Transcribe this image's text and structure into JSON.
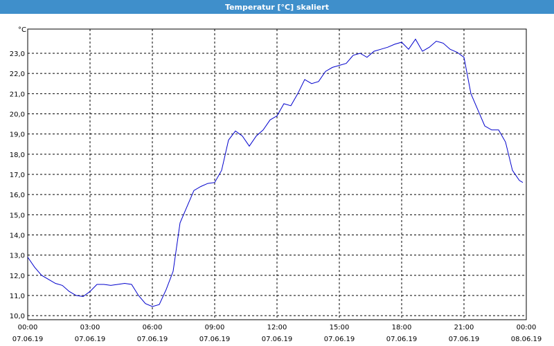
{
  "title": "Temperatur [°C] skaliert",
  "colors": {
    "titlebar": "#3f8fcb",
    "line": "#0000cc",
    "grid": "#000000"
  },
  "chart_data": {
    "type": "line",
    "title": "Temperatur [°C] skaliert",
    "ylabel": "°C",
    "xlabel": "",
    "xlim": [
      "2019-06-07 00:00",
      "2019-06-08 00:00"
    ],
    "ylim": [
      9.8,
      24.2
    ],
    "grid": true,
    "legend": "none",
    "x_ticks": [
      {
        "time": "00:00",
        "date": "07.06.19"
      },
      {
        "time": "03:00",
        "date": "07.06.19"
      },
      {
        "time": "06:00",
        "date": "07.06.19"
      },
      {
        "time": "09:00",
        "date": "07.06.19"
      },
      {
        "time": "12:00",
        "date": "07.06.19"
      },
      {
        "time": "15:00",
        "date": "07.06.19"
      },
      {
        "time": "18:00",
        "date": "07.06.19"
      },
      {
        "time": "21:00",
        "date": "07.06.19"
      },
      {
        "time": "00:00",
        "date": "08.06.19"
      }
    ],
    "y_ticks": [
      "10,0",
      "11,0",
      "12,0",
      "13,0",
      "14,0",
      "15,0",
      "16,0",
      "17,0",
      "18,0",
      "19,0",
      "20,0",
      "21,0",
      "22,0",
      "23,0"
    ],
    "series": [
      {
        "x": [
          "00:00",
          "00:20",
          "00:40",
          "01:00",
          "01:20",
          "01:40",
          "02:00",
          "02:20",
          "02:40",
          "03:00",
          "03:20",
          "03:40",
          "04:00",
          "04:20",
          "04:40",
          "05:00",
          "05:20",
          "05:40",
          "06:00",
          "06:20",
          "06:40",
          "07:00",
          "07:20",
          "07:40",
          "08:00",
          "08:20",
          "08:40",
          "09:00",
          "09:20",
          "09:40",
          "10:00",
          "10:20",
          "10:40",
          "11:00",
          "11:20",
          "11:40",
          "12:00",
          "12:20",
          "12:40",
          "13:00",
          "13:20",
          "13:40",
          "14:00",
          "14:20",
          "14:40",
          "15:00",
          "15:20",
          "15:40",
          "16:00",
          "16:20",
          "16:40",
          "17:00",
          "17:20",
          "17:40",
          "18:00",
          "18:20",
          "18:40",
          "19:00",
          "19:20",
          "19:40",
          "20:00",
          "20:20",
          "20:40",
          "21:00",
          "21:20",
          "21:40",
          "22:00",
          "22:20",
          "22:40",
          "23:00",
          "23:20",
          "23:40",
          "23:50"
        ],
        "y": [
          12.9,
          12.4,
          12.0,
          11.8,
          11.6,
          11.5,
          11.2,
          11.0,
          10.95,
          11.2,
          11.55,
          11.55,
          11.5,
          11.55,
          11.6,
          11.55,
          11.0,
          10.6,
          10.45,
          10.55,
          11.3,
          12.2,
          14.6,
          15.4,
          16.2,
          16.4,
          16.55,
          16.6,
          17.2,
          18.7,
          19.15,
          18.9,
          18.4,
          18.9,
          19.2,
          19.7,
          19.9,
          20.5,
          20.4,
          21.0,
          21.7,
          21.5,
          21.6,
          22.1,
          22.3,
          22.4,
          22.5,
          22.9,
          23.0,
          22.8,
          23.1,
          23.2,
          23.3,
          23.45,
          23.55,
          23.2,
          23.7,
          23.1,
          23.3,
          23.6,
          23.5,
          23.2,
          23.05,
          22.8,
          21.0,
          20.2,
          19.4,
          19.2,
          19.2,
          18.6,
          17.2,
          16.7,
          16.6
        ]
      }
    ]
  }
}
